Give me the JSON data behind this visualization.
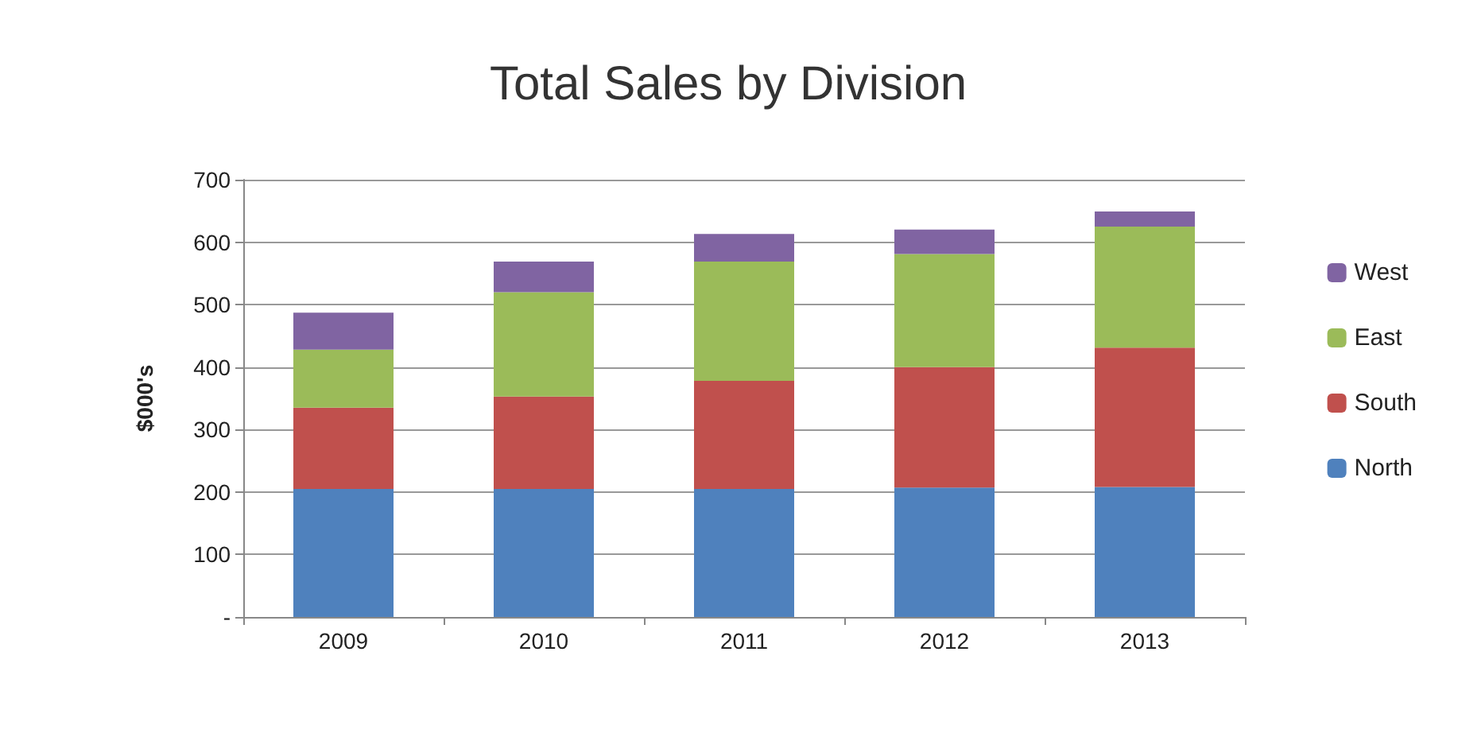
{
  "chart_data": {
    "type": "bar",
    "title": "Total Sales by Division",
    "ylabel": "$000's",
    "categories": [
      "2009",
      "2010",
      "2011",
      "2012",
      "2013"
    ],
    "series": [
      {
        "name": "North",
        "color": "#4f81bd",
        "values": [
          205,
          205,
          205,
          207,
          208
        ]
      },
      {
        "name": "South",
        "color": "#c0504d",
        "values": [
          130,
          148,
          173,
          193,
          223
        ]
      },
      {
        "name": "East",
        "color": "#9bbb59",
        "values": [
          93,
          167,
          191,
          181,
          194
        ]
      },
      {
        "name": "West",
        "color": "#8064a2",
        "values": [
          59,
          49,
          44,
          39,
          24
        ]
      }
    ],
    "stacked": true,
    "ylim": [
      0,
      700
    ],
    "yticks": [
      {
        "value": 0,
        "label": "-"
      },
      100,
      200,
      300,
      400,
      500,
      600,
      700
    ],
    "grid": "y",
    "legend": "right"
  }
}
